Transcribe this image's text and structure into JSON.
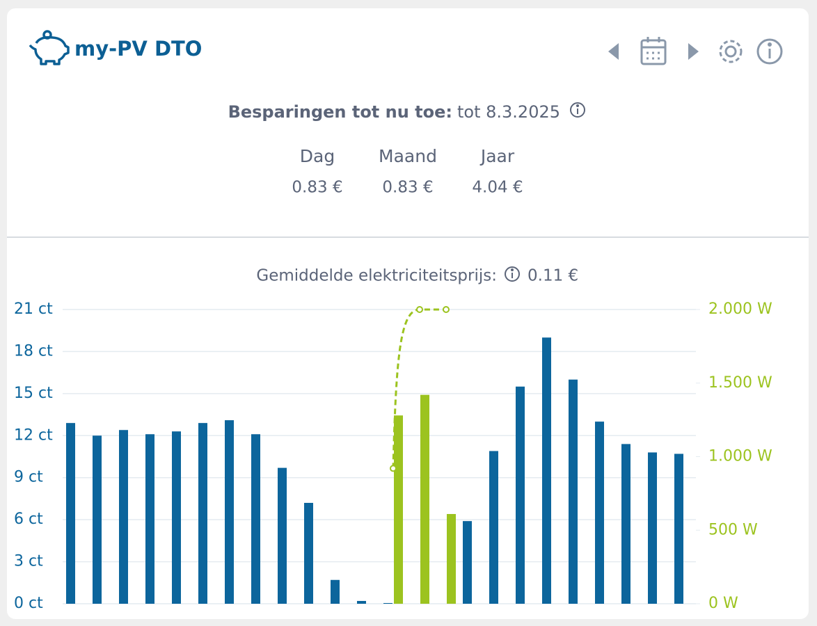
{
  "header": {
    "title": "my-PV DTO"
  },
  "savings": {
    "label": "Besparingen tot nu toe:",
    "period": "tot 8.3.2025",
    "columns": [
      {
        "label": "Dag",
        "value": "0.83 €"
      },
      {
        "label": "Maand",
        "value": "0.83 €"
      },
      {
        "label": "Jaar",
        "value": "4.04 €"
      }
    ]
  },
  "chart_data": {
    "type": "bar",
    "subtitle_label": "Gemiddelde elektriciteitsprijs:",
    "subtitle_value": "0.11 €",
    "ylim": [
      0,
      21
    ],
    "yticks": [
      {
        "value": 0,
        "label": "0 ct"
      },
      {
        "value": 3,
        "label": "3 ct"
      },
      {
        "value": 6,
        "label": "6 ct"
      },
      {
        "value": 9,
        "label": "9 ct"
      },
      {
        "value": 12,
        "label": "12 ct"
      },
      {
        "value": 15,
        "label": "15 ct"
      },
      {
        "value": 18,
        "label": "18 ct"
      },
      {
        "value": 21,
        "label": "21 ct"
      }
    ],
    "y2lim": [
      0,
      2000
    ],
    "y2ticks": [
      {
        "value": 0,
        "label": "0 W"
      },
      {
        "value": 500,
        "label": "500 W"
      },
      {
        "value": 1000,
        "label": "1.000 W"
      },
      {
        "value": 1500,
        "label": "1.500 W"
      },
      {
        "value": 2000,
        "label": "2.000 W"
      }
    ],
    "grid": true,
    "series": [
      {
        "type": "bar",
        "color": "#0c659c",
        "values": [
          12.9,
          12.0,
          12.4,
          12.1,
          12.3,
          12.9,
          13.1,
          12.1,
          9.7,
          7.2,
          1.7,
          0.2,
          0.05,
          null,
          null,
          5.9,
          10.9,
          15.5,
          19.0,
          16.0,
          13.0,
          11.4,
          10.8,
          10.7
        ]
      },
      {
        "type": "bar",
        "color": "#9cc31f",
        "axis": "y2",
        "values": [
          null,
          null,
          null,
          null,
          null,
          null,
          null,
          null,
          null,
          null,
          null,
          null,
          1280,
          1420,
          610,
          null,
          null,
          null,
          null,
          null,
          null,
          null,
          null,
          null
        ]
      },
      {
        "type": "line",
        "color": "#9cc31f",
        "axis": "y2",
        "dashed": true,
        "values": [
          null,
          null,
          null,
          null,
          null,
          null,
          null,
          null,
          null,
          null,
          null,
          null,
          920,
          2000,
          2000,
          null,
          null,
          null,
          null,
          null,
          null,
          null,
          null,
          null
        ]
      }
    ]
  }
}
